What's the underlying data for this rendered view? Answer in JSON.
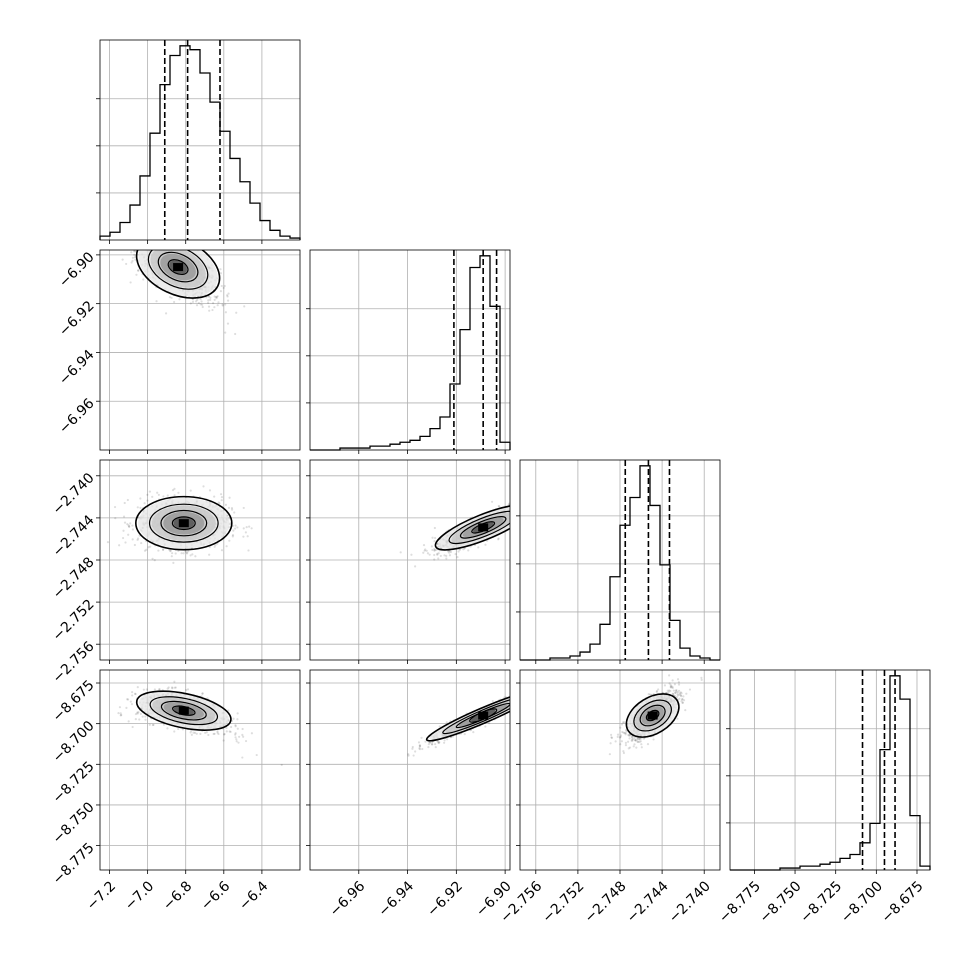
{
  "chart_data": {
    "type": "corner",
    "parameters": [
      {
        "range": [
          -7.25,
          -6.2
        ],
        "ticks": [
          -7.2,
          -7.0,
          -6.8,
          -6.6,
          -6.4
        ],
        "tick_labels": [
          "−7.2",
          "−7.0",
          "−6.8",
          "−6.6",
          "−6.4"
        ]
      },
      {
        "range": [
          -6.98,
          -6.898
        ],
        "ticks": [
          -6.96,
          -6.94,
          -6.92,
          -6.9
        ],
        "tick_labels": [
          "−6.96",
          "−6.94",
          "−6.92",
          "−6.90"
        ]
      },
      {
        "range": [
          -2.7575,
          -2.7385
        ],
        "ticks": [
          -2.756,
          -2.752,
          -2.748,
          -2.744,
          -2.74
        ],
        "tick_labels": [
          "−2.756",
          "−2.752",
          "−2.748",
          "−2.744",
          "−2.740"
        ]
      },
      {
        "range": [
          -8.79,
          -8.667
        ],
        "ticks": [
          -8.775,
          -8.75,
          -8.725,
          -8.7,
          -8.675
        ],
        "tick_labels": [
          "−8.775",
          "−8.750",
          "−8.725",
          "−8.700",
          "−8.675"
        ]
      }
    ],
    "histograms": [
      {
        "param": 0,
        "values": [
          2,
          4,
          9,
          18,
          33,
          55,
          80,
          95,
          100,
          98,
          86,
          71,
          56,
          42,
          30,
          19,
          10,
          5,
          2,
          1
        ],
        "quantiles": [
          -6.91,
          -6.79,
          -6.62
        ]
      },
      {
        "param": 1,
        "values": [
          0,
          0,
          0,
          1,
          1,
          1,
          2,
          2,
          3,
          4,
          5,
          7,
          11,
          17,
          34,
          62,
          94,
          100,
          74,
          4
        ],
        "quantiles": [
          -6.921,
          -6.909,
          -6.9035
        ]
      },
      {
        "param": 2,
        "values": [
          0,
          0,
          0,
          1,
          1,
          2,
          4,
          8,
          18,
          42,
          68,
          82,
          98,
          78,
          48,
          20,
          6,
          2,
          1,
          0
        ],
        "quantiles": [
          -2.7475,
          -2.7453,
          -2.7433
        ]
      },
      {
        "param": 3,
        "values": [
          0,
          0,
          0,
          0,
          0,
          1,
          1,
          2,
          2,
          3,
          4,
          6,
          8,
          14,
          24,
          62,
          100,
          88,
          28,
          2
        ],
        "quantiles": [
          -8.7085,
          -8.695,
          -8.6885
        ]
      }
    ],
    "joint": [
      {
        "px": 0,
        "py": 1,
        "mean": [
          -6.84,
          -6.905
        ],
        "std": [
          0.11,
          0.007
        ],
        "rho": -0.65,
        "curve": 0.0006
      },
      {
        "px": 0,
        "py": 2,
        "mean": [
          -6.81,
          -2.7445
        ],
        "std": [
          0.12,
          0.0012
        ],
        "rho": 0.0,
        "curve": 0
      },
      {
        "px": 1,
        "py": 2,
        "mean": [
          -6.909,
          -2.7449
        ],
        "std": [
          0.01,
          0.0012
        ],
        "rho": 0.88,
        "curve": 0
      },
      {
        "px": 0,
        "py": 3,
        "mean": [
          -6.81,
          -8.692
        ],
        "std": [
          0.12,
          0.006
        ],
        "rho": -0.55,
        "curve": 0.0008
      },
      {
        "px": 1,
        "py": 3,
        "mean": [
          -6.909,
          -8.695
        ],
        "std": [
          0.012,
          0.009
        ],
        "rho": 0.97,
        "curve": 0
      },
      {
        "px": 2,
        "py": 3,
        "mean": [
          -2.7449,
          -8.695
        ],
        "std": [
          0.0013,
          0.008
        ],
        "rho": 0.75,
        "curve": 0
      }
    ],
    "grid": true
  }
}
